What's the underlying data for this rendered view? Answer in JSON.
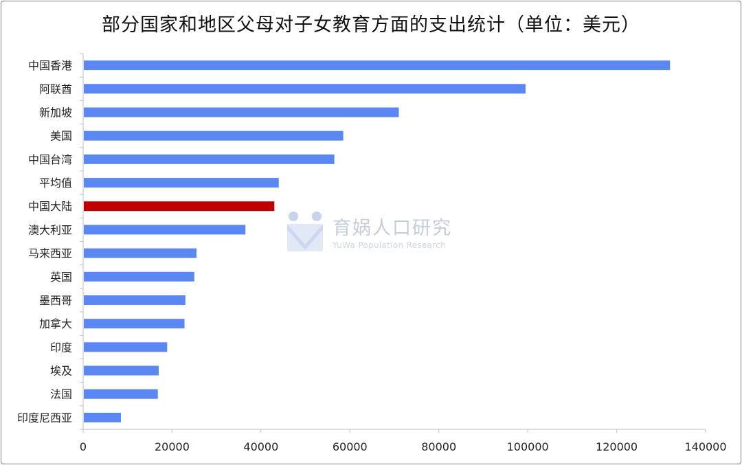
{
  "chart_data": {
    "type": "bar",
    "orientation": "horizontal",
    "title": "部分国家和地区父母对子女教育方面的支出统计（单位：美元）",
    "categories": [
      "中国香港",
      "阿联酋",
      "新加坡",
      "美国",
      "中国台湾",
      "平均值",
      "中国大陆",
      "澳大利亚",
      "马来西亚",
      "英国",
      "墨西哥",
      "加拿大",
      "印度",
      "埃及",
      "法国",
      "印度尼西亚"
    ],
    "values": [
      132000,
      99500,
      71000,
      58500,
      56500,
      44000,
      43000,
      36500,
      25500,
      25000,
      23000,
      22800,
      18900,
      17000,
      16800,
      8500
    ],
    "highlight": "中国大陆",
    "colors": {
      "bar": "#5b87f2",
      "highlight": "#c00000",
      "axis": "#bfbfbf"
    },
    "xlim": [
      0,
      140000
    ],
    "xticks": [
      0,
      20000,
      40000,
      60000,
      80000,
      100000,
      120000,
      140000
    ],
    "xlabel": "",
    "ylabel": ""
  },
  "watermark": {
    "title": "育娲人口研究",
    "subtitle": "YuWa Population Research"
  }
}
